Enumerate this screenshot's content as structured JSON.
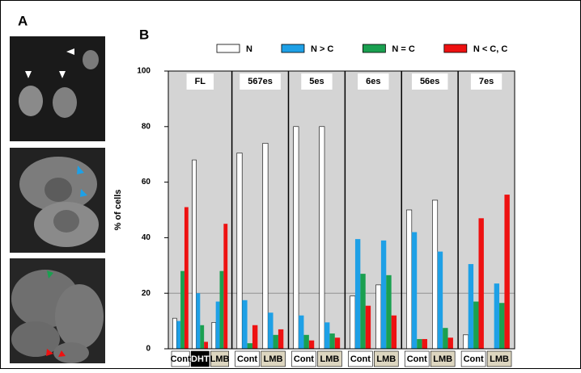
{
  "panel_a": {
    "label": "A"
  },
  "chart_data": {
    "type": "bar",
    "title": "B",
    "ylabel": "% of cells",
    "ylim": [
      0,
      100
    ],
    "yticks": [
      0,
      20,
      40,
      60,
      80,
      100
    ],
    "reference_line": 20,
    "panels": [
      {
        "label": "FL",
        "categories": [
          "Cont",
          "DHT",
          "LMB"
        ],
        "backgrounds": [
          "#ffffff",
          "#000000",
          "#ddd6c0"
        ]
      },
      {
        "label": "567es",
        "categories": [
          "Cont",
          "LMB"
        ],
        "backgrounds": [
          "#ffffff",
          "#ddd6c0"
        ]
      },
      {
        "label": "5es",
        "categories": [
          "Cont",
          "LMB"
        ],
        "backgrounds": [
          "#ffffff",
          "#ddd6c0"
        ]
      },
      {
        "label": "6es",
        "categories": [
          "Cont",
          "LMB"
        ],
        "backgrounds": [
          "#ffffff",
          "#ddd6c0"
        ]
      },
      {
        "label": "56es",
        "categories": [
          "Cont",
          "LMB"
        ],
        "backgrounds": [
          "#ffffff",
          "#ddd6c0"
        ]
      },
      {
        "label": "7es",
        "categories": [
          "Cont",
          "LMB"
        ],
        "backgrounds": [
          "#ffffff",
          "#ddd6c0"
        ]
      }
    ],
    "series": [
      {
        "name": "N",
        "color": "#ffffff",
        "values": [
          11,
          68,
          9.5,
          70.5,
          74,
          80,
          80,
          19,
          23,
          50,
          53.5,
          5,
          0
        ]
      },
      {
        "name": "N > C",
        "color": "#1ea0e6",
        "values": [
          10,
          20,
          17,
          17.5,
          13,
          12,
          9.5,
          39.5,
          39,
          42,
          35,
          30.5,
          23.5
        ]
      },
      {
        "name": "N = C",
        "color": "#1aa050",
        "values": [
          28,
          8.5,
          28,
          2,
          5,
          5,
          5.5,
          27,
          26.5,
          3.5,
          7.5,
          17,
          16.5
        ]
      },
      {
        "name": "N < C, C",
        "color": "#ee1111",
        "values": [
          51,
          2.5,
          45,
          8.5,
          7,
          3,
          4,
          15.5,
          12,
          3.5,
          4,
          47,
          55.5
        ]
      }
    ]
  }
}
